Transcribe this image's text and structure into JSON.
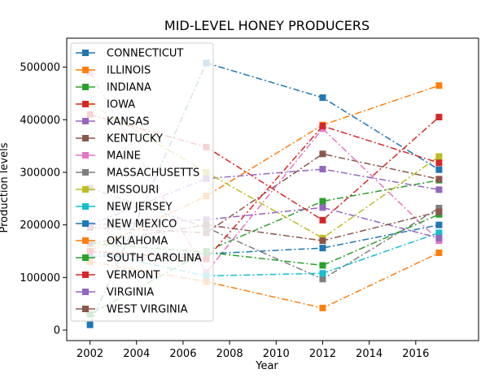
{
  "chart_data": {
    "type": "line",
    "title": "MID-LEVEL HONEY PRODUCERS",
    "xlabel": "Year",
    "ylabel": "Production levels",
    "x": [
      2002,
      2007,
      2012,
      2017
    ],
    "xlim": [
      2001,
      2018.7
    ],
    "ylim": [
      -20000,
      555000
    ],
    "xticks": [
      2002,
      2004,
      2006,
      2008,
      2010,
      2012,
      2014,
      2016
    ],
    "yticks": [
      0,
      100000,
      200000,
      300000,
      400000,
      500000
    ],
    "legend_position": "upper-left",
    "series": [
      {
        "name": "CONNECTICUT",
        "color": "#1f77b4",
        "values": [
          10000,
          508000,
          442000,
          305000
        ]
      },
      {
        "name": "ILLINOIS",
        "color": "#ff7f0e",
        "values": [
          150000,
          255000,
          390000,
          465000
        ]
      },
      {
        "name": "INDIANA",
        "color": "#2ca02c",
        "values": [
          30000,
          150000,
          245000,
          285000
        ]
      },
      {
        "name": "IOWA",
        "color": "#d62728",
        "values": [
          410000,
          348000,
          209000,
          405000
        ]
      },
      {
        "name": "KANSAS",
        "color": "#9467bd",
        "values": [
          200000,
          288000,
          306000,
          267000
        ]
      },
      {
        "name": "KENTUCKY",
        "color": "#8c564b",
        "values": [
          195000,
          185000,
          335000,
          287000
        ]
      },
      {
        "name": "MAINE",
        "color": "#e377c2",
        "values": [
          490000,
          110000,
          383000,
          170000
        ]
      },
      {
        "name": "MASSACHUSETTS",
        "color": "#7f7f7f",
        "values": [
          270000,
          195000,
          97000,
          232000
        ]
      },
      {
        "name": "MISSOURI",
        "color": "#bcbd22",
        "values": [
          430000,
          300000,
          175000,
          330000
        ]
      },
      {
        "name": "NEW JERSEY",
        "color": "#17becf",
        "values": [
          150000,
          103000,
          108000,
          185000
        ]
      },
      {
        "name": "NEW MEXICO",
        "color": "#1f77b4",
        "values": [
          140000,
          145000,
          156000,
          200000
        ]
      },
      {
        "name": "OKLAHOMA",
        "color": "#ff7f0e",
        "values": [
          130000,
          92000,
          42000,
          147000
        ]
      },
      {
        "name": "SOUTH CAROLINA",
        "color": "#2ca02c",
        "values": [
          165000,
          148000,
          123000,
          220000
        ]
      },
      {
        "name": "VERMONT",
        "color": "#d62728",
        "values": [
          150000,
          135000,
          388000,
          318000
        ]
      },
      {
        "name": "VIRGINIA",
        "color": "#9467bd",
        "values": [
          200000,
          210000,
          233000,
          175000
        ]
      },
      {
        "name": "WEST VIRGINIA",
        "color": "#8c564b",
        "values": [
          165000,
          200000,
          170000,
          225000
        ]
      }
    ]
  }
}
